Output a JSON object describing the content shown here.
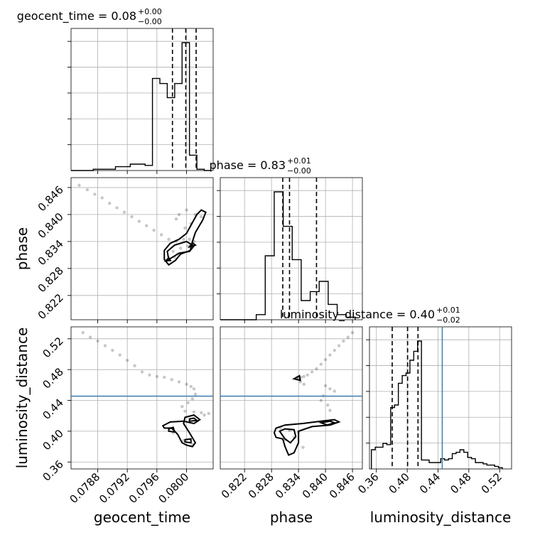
{
  "chart_data": {
    "type": "scatter",
    "plot_kind": "corner",
    "parameters": [
      "geocent_time",
      "phase",
      "luminosity_distance"
    ],
    "titles": [
      {
        "param": "geocent_time",
        "median": "0.08",
        "plus": "+0.00",
        "minus": "−0.00"
      },
      {
        "param": "phase",
        "median": "0.83",
        "plus": "+0.01",
        "minus": "−0.00"
      },
      {
        "param": "luminosity_distance",
        "median": "0.40",
        "plus": "+0.01",
        "minus": "−0.02"
      }
    ],
    "ranges": {
      "geocent_time": [
        0.07844,
        0.08036
      ],
      "phase": [
        0.8166,
        0.8482
      ],
      "luminosity_distance": [
        0.351,
        0.5355
      ]
    },
    "ticks": {
      "geocent_time": [
        "0.0788",
        "0.0792",
        "0.0796",
        "0.0800"
      ],
      "phase": [
        "0.822",
        "0.828",
        "0.834",
        "0.840",
        "0.846"
      ],
      "luminosity_distance": [
        "0.36",
        "0.40",
        "0.44",
        "0.48",
        "0.52"
      ]
    },
    "quantiles": {
      "geocent_time": [
        0.07981,
        0.07999,
        0.08013
      ],
      "phase": [
        0.8305,
        0.832,
        0.838
      ],
      "luminosity_distance": [
        0.3805,
        0.4005,
        0.414
      ]
    },
    "truths": {
      "geocent_time": null,
      "phase": null,
      "luminosity_distance": 0.4455
    },
    "histograms": {
      "geocent_time": {
        "edges": [
          0.07844,
          0.07854,
          0.07864,
          0.07874,
          0.07884,
          0.07894,
          0.07904,
          0.07914,
          0.07924,
          0.07934,
          0.07944,
          0.07954,
          0.07964,
          0.07974,
          0.07984,
          0.07994,
          0.08004,
          0.08014,
          0.08024,
          0.08034
        ],
        "counts": [
          0,
          0,
          0,
          1,
          1,
          1,
          3,
          3,
          5,
          5,
          4,
          72,
          68,
          57,
          68,
          100,
          12,
          1,
          0
        ]
      },
      "phase": {
        "edges": [
          0.8166,
          0.8186,
          0.8206,
          0.8226,
          0.8246,
          0.8266,
          0.8286,
          0.8306,
          0.8326,
          0.8346,
          0.8366,
          0.8386,
          0.8406,
          0.8426,
          0.8446,
          0.8466
        ],
        "counts": [
          0,
          0,
          0,
          0,
          4,
          50,
          100,
          73,
          47,
          15,
          22,
          30,
          12,
          4,
          2
        ]
      },
      "luminosity_distance": {
        "edges": [
          0.3535,
          0.3585,
          0.3635,
          0.3685,
          0.3735,
          0.3785,
          0.3835,
          0.3885,
          0.3935,
          0.3985,
          0.4035,
          0.4085,
          0.4135,
          0.4185,
          0.4235,
          0.4285,
          0.4335,
          0.4385,
          0.4435,
          0.4485,
          0.4535,
          0.4585,
          0.4635,
          0.4685,
          0.4735,
          0.4785,
          0.4835,
          0.4885,
          0.4935,
          0.4985,
          0.5035,
          0.5085,
          0.5135,
          0.5185,
          0.5235
        ],
        "counts": [
          15,
          17,
          17,
          20,
          19,
          48,
          50,
          67,
          73,
          75,
          85,
          92,
          100,
          7,
          7,
          5,
          5,
          5,
          8,
          7,
          8,
          12,
          13,
          15,
          13,
          9,
          8,
          5,
          5,
          4,
          3,
          3,
          2,
          1
        ]
      }
    },
    "scatter_pairs": {
      "phase_vs_geocent_time": {
        "x": [
          0.07855,
          0.07866,
          0.07876,
          0.07886,
          0.07896,
          0.07906,
          0.07916,
          0.07926,
          0.07936,
          0.07946,
          0.07956,
          0.07966,
          0.07976,
          0.07986,
          0.07996,
          0.08006,
          0.08012,
          0.08,
          0.0799,
          0.07986,
          0.07998,
          0.08004,
          0.0801,
          0.0802,
          0.08002,
          0.07992,
          0.07984,
          0.07978,
          0.07982,
          0.07988
        ],
        "y": [
          0.8465,
          0.8455,
          0.8445,
          0.8437,
          0.8425,
          0.8415,
          0.8405,
          0.8395,
          0.8385,
          0.8375,
          0.8365,
          0.8355,
          0.8345,
          0.834,
          0.8345,
          0.838,
          0.84,
          0.841,
          0.84,
          0.839,
          0.837,
          0.8345,
          0.834,
          0.8395,
          0.833,
          0.8325,
          0.8305,
          0.8298,
          0.8318,
          0.8312
        ]
      },
      "luminosity_distance_vs_geocent_time": {
        "x": [
          0.0786,
          0.0787,
          0.0788,
          0.0789,
          0.079,
          0.0791,
          0.0792,
          0.0793,
          0.0794,
          0.0795,
          0.0796,
          0.0797,
          0.0798,
          0.0799,
          0.08,
          0.08006,
          0.0801,
          0.08012,
          0.08008,
          0.08002,
          0.07994,
          0.07998,
          0.0801,
          0.0802,
          0.08024,
          0.0803,
          0.07978,
          0.07982,
          0.07996,
          0.08008
        ],
        "y": [
          0.528,
          0.522,
          0.517,
          0.511,
          0.505,
          0.499,
          0.492,
          0.485,
          0.477,
          0.473,
          0.471,
          0.47,
          0.467,
          0.464,
          0.461,
          0.458,
          0.455,
          0.448,
          0.442,
          0.437,
          0.432,
          0.426,
          0.425,
          0.424,
          0.421,
          0.423,
          0.404,
          0.398,
          0.388,
          0.383
        ]
      },
      "luminosity_distance_vs_phase": {
        "x": [
          0.846,
          0.845,
          0.844,
          0.843,
          0.842,
          0.841,
          0.84,
          0.839,
          0.838,
          0.837,
          0.836,
          0.8352,
          0.8346,
          0.834,
          0.8336,
          0.8344,
          0.8352,
          0.84,
          0.841,
          0.842,
          0.8395,
          0.839,
          0.8405,
          0.841,
          0.83,
          0.832,
          0.834,
          0.833,
          0.831,
          0.835
        ],
        "y": [
          0.528,
          0.522,
          0.517,
          0.511,
          0.505,
          0.499,
          0.493,
          0.487,
          0.481,
          0.477,
          0.473,
          0.471,
          0.47,
          0.469,
          0.468,
          0.464,
          0.461,
          0.459,
          0.455,
          0.452,
          0.446,
          0.44,
          0.434,
          0.427,
          0.404,
          0.401,
          0.399,
          0.392,
          0.389,
          0.379
        ]
      }
    },
    "contours": {
      "phase_vs_geocent_time": [
        [
          [
            0.07985,
            0.8298
          ],
          [
            0.07992,
            0.8312
          ],
          [
            0.08005,
            0.832
          ],
          [
            0.08008,
            0.834
          ],
          [
            0.08012,
            0.836
          ],
          [
            0.08022,
            0.8388
          ],
          [
            0.08026,
            0.8405
          ],
          [
            0.0802,
            0.841
          ],
          [
            0.08014,
            0.84
          ],
          [
            0.08008,
            0.8382
          ],
          [
            0.08,
            0.8358
          ],
          [
            0.0799,
            0.8345
          ],
          [
            0.07978,
            0.8336
          ],
          [
            0.0797,
            0.832
          ],
          [
            0.0797,
            0.83
          ],
          [
            0.07976,
            0.8288
          ],
          [
            0.07985,
            0.8298
          ]
        ],
        [
          [
            0.07976,
            0.83
          ],
          [
            0.0799,
            0.8314
          ],
          [
            0.08004,
            0.8318
          ],
          [
            0.0801,
            0.833
          ],
          [
            0.08,
            0.834
          ],
          [
            0.07984,
            0.8332
          ],
          [
            0.07974,
            0.8318
          ],
          [
            0.07976,
            0.83
          ]
        ],
        [
          [
            0.08004,
            0.8328
          ],
          [
            0.08012,
            0.8332
          ],
          [
            0.08008,
            0.8337
          ],
          [
            0.08004,
            0.8328
          ]
        ],
        [
          [
            0.07972,
            0.8297
          ],
          [
            0.07978,
            0.8298
          ],
          [
            0.07976,
            0.8304
          ],
          [
            0.07972,
            0.8297
          ]
        ]
      ],
      "luminosity_distance_vs_geocent_time": [
        [
          [
            0.0797,
            0.404
          ],
          [
            0.0798,
            0.404
          ],
          [
            0.07988,
            0.396
          ],
          [
            0.07994,
            0.385
          ],
          [
            0.08,
            0.382
          ],
          [
            0.08008,
            0.38
          ],
          [
            0.08012,
            0.385
          ],
          [
            0.08004,
            0.398
          ],
          [
            0.07996,
            0.41
          ],
          [
            0.07998,
            0.418
          ],
          [
            0.0801,
            0.421
          ],
          [
            0.08018,
            0.415
          ],
          [
            0.0801,
            0.41
          ],
          [
            0.07996,
            0.413
          ],
          [
            0.07978,
            0.412
          ],
          [
            0.07968,
            0.407
          ],
          [
            0.0797,
            0.404
          ]
        ],
        [
          [
            0.07976,
            0.4
          ],
          [
            0.07984,
            0.399
          ],
          [
            0.07982,
            0.405
          ],
          [
            0.07976,
            0.403
          ],
          [
            0.07976,
            0.4
          ]
        ],
        [
          [
            0.08004,
            0.413
          ],
          [
            0.08014,
            0.414
          ],
          [
            0.0801,
            0.417
          ],
          [
            0.08004,
            0.416
          ],
          [
            0.08004,
            0.413
          ]
        ],
        [
          [
            0.07998,
            0.386
          ],
          [
            0.08006,
            0.385
          ],
          [
            0.08006,
            0.39
          ],
          [
            0.07998,
            0.389
          ],
          [
            0.07998,
            0.386
          ]
        ]
      ],
      "luminosity_distance_vs_phase": [
        [
          [
            0.829,
            0.404
          ],
          [
            0.831,
            0.408
          ],
          [
            0.835,
            0.41
          ],
          [
            0.839,
            0.413
          ],
          [
            0.842,
            0.415
          ],
          [
            0.843,
            0.412
          ],
          [
            0.841,
            0.408
          ],
          [
            0.837,
            0.406
          ],
          [
            0.834,
            0.4
          ],
          [
            0.834,
            0.385
          ],
          [
            0.833,
            0.372
          ],
          [
            0.8318,
            0.369
          ],
          [
            0.831,
            0.38
          ],
          [
            0.8305,
            0.39
          ],
          [
            0.829,
            0.392
          ],
          [
            0.8286,
            0.398
          ],
          [
            0.829,
            0.404
          ]
        ],
        [
          [
            0.8298,
            0.4
          ],
          [
            0.831,
            0.403
          ],
          [
            0.833,
            0.402
          ],
          [
            0.8334,
            0.393
          ],
          [
            0.8322,
            0.385
          ],
          [
            0.831,
            0.39
          ],
          [
            0.8298,
            0.4
          ]
        ],
        [
          [
            0.839,
            0.411
          ],
          [
            0.841,
            0.413
          ],
          [
            0.842,
            0.411
          ],
          [
            0.8404,
            0.408
          ],
          [
            0.839,
            0.411
          ]
        ],
        [
          [
            0.833,
            0.468
          ],
          [
            0.8342,
            0.472
          ],
          [
            0.8344,
            0.466
          ],
          [
            0.833,
            0.468
          ]
        ]
      ]
    },
    "grid": true
  }
}
